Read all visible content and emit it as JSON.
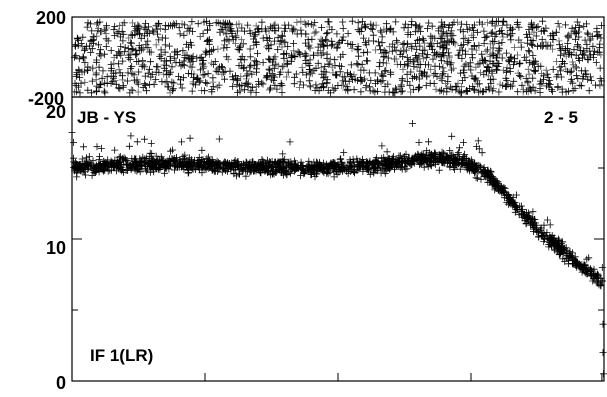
{
  "chart_data": [
    {
      "panel": "phase",
      "type": "scatter",
      "marker": "+",
      "xlim": [
        0,
        1024
      ],
      "ylim": [
        -200,
        200
      ],
      "y_tick_labels": [
        "200",
        "-200"
      ],
      "series": [
        {
          "description": "phase points uniformly scattered between -180 and 180 across all channels"
        }
      ]
    },
    {
      "panel": "amplitude",
      "type": "scatter",
      "marker": "+",
      "xlim": [
        0,
        1024
      ],
      "ylim": [
        0,
        20
      ],
      "y_tick_labels": [
        "20",
        "10",
        "0"
      ],
      "x": [
        0,
        100,
        200,
        300,
        400,
        500,
        600,
        650,
        700,
        750,
        800,
        850,
        900,
        950,
        1000,
        1020
      ],
      "y": [
        15.0,
        15.2,
        15.3,
        15.1,
        15.0,
        15.0,
        15.2,
        15.6,
        15.7,
        15.5,
        14.5,
        12.5,
        10.5,
        9.0,
        7.5,
        7.0
      ],
      "annotations": {
        "baseline": "JB - YS",
        "channel_range": "2 - 5",
        "if_label": "IF 1(LR)"
      }
    }
  ]
}
